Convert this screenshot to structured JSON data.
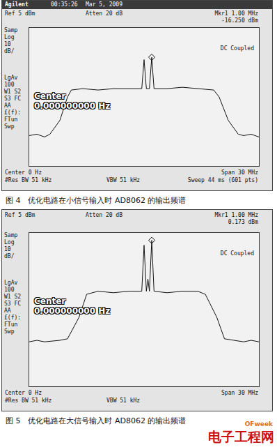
{
  "chart_data": [
    {
      "type": "line",
      "title": "图 4　优化电路在小信号输入时 AD8062 的输出频谱",
      "annotations": {
        "header": [
          "Agilent",
          "00:35:26",
          "Mar 5, 2009"
        ],
        "top_left": "Ref 5 dBm",
        "top_center": "Atten 20 dB",
        "top_right": [
          "Mkr1 1.00 MHz",
          "-16.250 dBm"
        ],
        "side_top": [
          "Samp",
          "Log",
          "10",
          "dB/"
        ],
        "side_bottom": [
          "LgAv",
          "100",
          "W1 S2",
          "S3 FC",
          "AA",
          "£(f):",
          "FTun",
          "Swp"
        ],
        "coupling": "DC Coupled",
        "overlay": [
          "Center",
          "0.000000000  Hz"
        ],
        "bottom_left": [
          "Center 0 Hz",
          "#Res BW 51 kHz"
        ],
        "bottom_center": "VBW 51 kHz",
        "bottom_right": [
          "Span 30 MHz",
          "Sweep 44 ms (601 pts)"
        ]
      },
      "x": [
        -15,
        -14,
        -13,
        -12.3,
        -11,
        -10,
        -9.5,
        -8,
        -6,
        -4,
        -2,
        -0.3,
        0,
        0.3,
        0.7,
        1,
        1.3,
        3,
        5,
        7,
        9.1,
        9.8,
        11,
        12.3,
        13,
        14,
        15
      ],
      "values": [
        -73,
        -72,
        -74,
        -72,
        -62,
        -45,
        -40,
        -39,
        -40,
        -39,
        -39,
        -39,
        -18,
        -39,
        -39,
        -16.25,
        -39,
        -39,
        -38,
        -39,
        -40,
        -45,
        -62,
        -72,
        -73,
        -72,
        -74
      ],
      "marker_point": {
        "x": 1,
        "value": -16.25
      },
      "color": "#111111",
      "marker": "diamond",
      "xlim": [
        -15,
        15
      ],
      "ylim": [
        -95,
        5
      ],
      "grid": false,
      "tick_labels": false
    },
    {
      "type": "line",
      "title": "图 5　优化电路在大信号输入时 AD8062 的输出频谱",
      "annotations": {
        "top_left": "Ref 5 dBm",
        "top_center": "Atten 20 dB",
        "top_right": [
          "Mkr1 1.00 MHz",
          "0.173 dBm"
        ],
        "side_top": [
          "Samp",
          "Log",
          "10",
          "dB/"
        ],
        "side_bottom": [
          "LgAv",
          "100",
          "W1 S2",
          "S3 FC",
          "AA",
          "£(f):",
          "FTun",
          "Swp"
        ],
        "coupling": "DC Coupled",
        "overlay": [
          "Center",
          "0.000000000  Hz"
        ],
        "bottom_left": [
          "Center 0 Hz",
          "#Res BW 51 kHz"
        ],
        "bottom_center": "VBW 51 kHz",
        "bottom_right": [
          "Span 30 MHz"
        ]
      },
      "x": [
        -15,
        -14,
        -13,
        -11,
        -10,
        -8.5,
        -7.5,
        -6,
        -4,
        -2,
        -0.3,
        0,
        0.3,
        0.5,
        0.7,
        1,
        1.3,
        3,
        5,
        7,
        8,
        9.5,
        10.5,
        12,
        13,
        14,
        15
      ],
      "values": [
        -66,
        -65,
        -66,
        -65,
        -64,
        -50,
        -35,
        -33,
        -34,
        -33,
        -33,
        -3,
        -33,
        -25,
        -33,
        0.173,
        -33,
        -34,
        -33,
        -33,
        -35,
        -50,
        -64,
        -65,
        -66,
        -65,
        -66
      ],
      "marker_point": {
        "x": 1,
        "value": 0.173
      },
      "color": "#111111",
      "marker": "diamond",
      "xlim": [
        -15,
        15
      ],
      "ylim": [
        -95,
        5
      ],
      "grid": false,
      "tick_labels": false
    }
  ],
  "watermark": [
    "OFweek",
    "电子工程网"
  ]
}
